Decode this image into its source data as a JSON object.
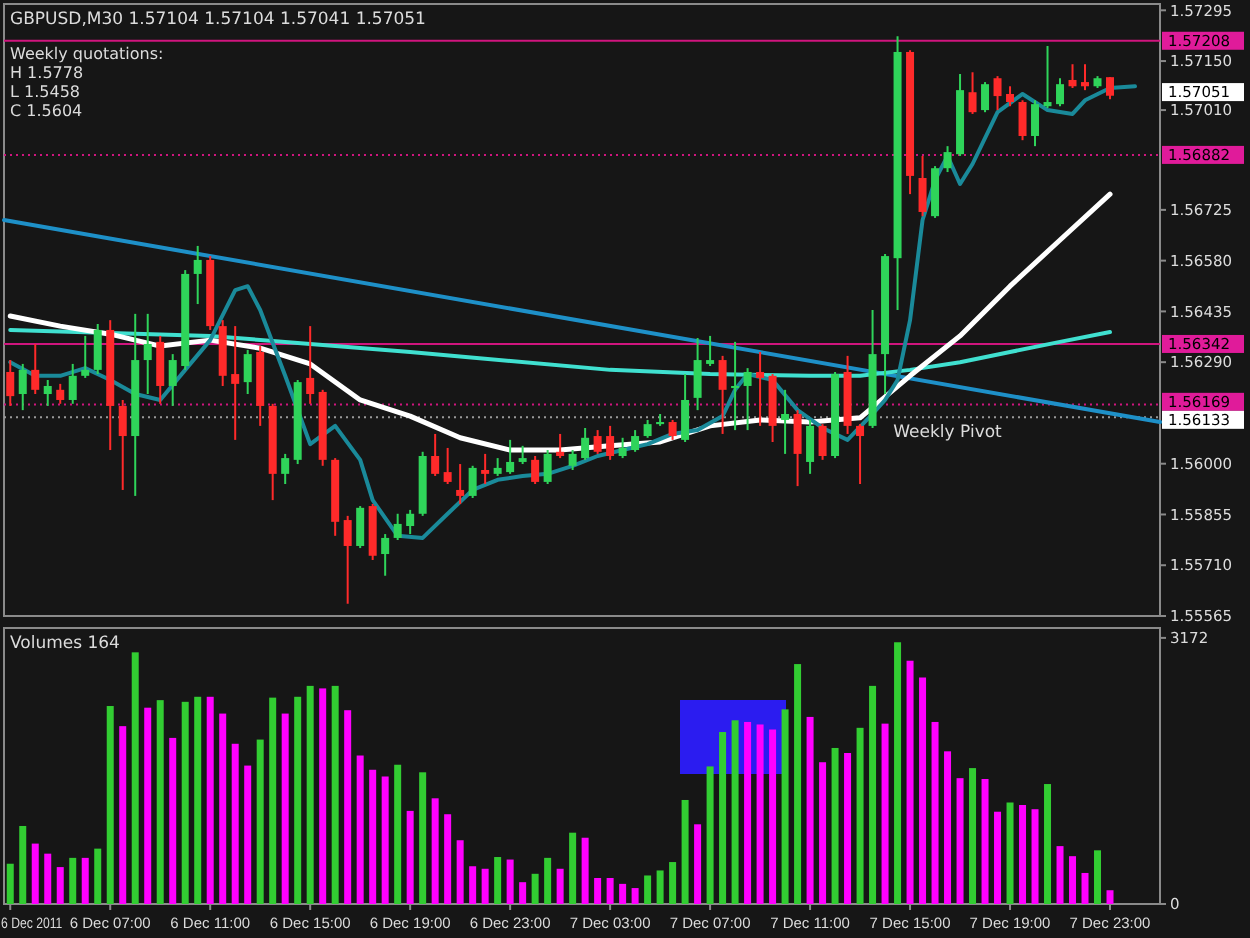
{
  "chart_data": [
    {
      "type": "candlestick",
      "title": "GBPUSD,M30  1.57104 1.57104 1.57041 1.57051",
      "tick_labels": "y",
      "annotations": [
        "Weekly quotations:",
        "H 1.5778",
        "L 1.5458",
        "C 1.5604",
        {
          "text": "Weekly Pivot",
          "x": "2011-12-07T16:30",
          "y": 1.56133
        },
        "1.57051"
      ],
      "xlim": [
        "2011-12-06T02:45",
        "2011-12-08T01:00"
      ],
      "ylim": [
        1.55565,
        1.57313
      ],
      "yticks": [
        1.57295,
        {
          "value": 1.5715,
          "label": "1.57150"
        },
        {
          "value": 1.5701,
          "label": "1.57010"
        },
        1.56725,
        {
          "value": 1.5658,
          "label": "1.56580"
        },
        1.56435,
        {
          "value": 1.5629,
          "label": "1.56290"
        },
        {
          "value": 1.56,
          "label": "1.56000"
        },
        1.55855,
        {
          "value": 1.5571,
          "label": "1.55710"
        },
        1.55565
      ],
      "x": [
        "2011-12-06T03:00",
        "2011-12-06T03:30",
        "2011-12-06T04:00",
        "2011-12-06T04:30",
        "2011-12-06T05:00",
        "2011-12-06T05:30",
        "2011-12-06T06:00",
        "2011-12-06T06:30",
        "2011-12-06T07:00",
        "2011-12-06T07:30",
        "2011-12-06T08:00",
        "2011-12-06T08:30",
        "2011-12-06T09:00",
        "2011-12-06T09:30",
        "2011-12-06T10:00",
        "2011-12-06T10:30",
        "2011-12-06T11:00",
        "2011-12-06T11:30",
        "2011-12-06T12:00",
        "2011-12-06T12:30",
        "2011-12-06T13:00",
        "2011-12-06T13:30",
        "2011-12-06T14:00",
        "2011-12-06T14:30",
        "2011-12-06T15:00",
        "2011-12-06T15:30",
        "2011-12-06T16:00",
        "2011-12-06T16:30",
        "2011-12-06T17:00",
        "2011-12-06T17:30",
        "2011-12-06T18:00",
        "2011-12-06T18:30",
        "2011-12-06T19:00",
        "2011-12-06T19:30",
        "2011-12-06T20:00",
        "2011-12-06T20:30",
        "2011-12-06T21:00",
        "2011-12-06T21:30",
        "2011-12-06T22:00",
        "2011-12-06T22:30",
        "2011-12-06T23:00",
        "2011-12-06T23:30",
        "2011-12-07T00:00",
        "2011-12-07T00:30",
        "2011-12-07T01:00",
        "2011-12-07T01:30",
        "2011-12-07T02:00",
        "2011-12-07T02:30",
        "2011-12-07T03:00",
        "2011-12-07T03:30",
        "2011-12-07T04:00",
        "2011-12-07T04:30",
        "2011-12-07T05:00",
        "2011-12-07T05:30",
        "2011-12-07T06:00",
        "2011-12-07T06:30",
        "2011-12-07T07:00",
        "2011-12-07T07:30",
        "2011-12-07T08:00",
        "2011-12-07T08:30",
        "2011-12-07T09:00",
        "2011-12-07T09:30",
        "2011-12-07T10:00",
        "2011-12-07T10:30",
        "2011-12-07T11:00",
        "2011-12-07T11:30",
        "2011-12-07T12:00",
        "2011-12-07T12:30",
        "2011-12-07T13:00",
        "2011-12-07T13:30",
        "2011-12-07T14:00",
        "2011-12-07T14:30",
        "2011-12-07T15:00",
        "2011-12-07T15:30",
        "2011-12-07T16:00",
        "2011-12-07T16:30",
        "2011-12-07T17:00",
        "2011-12-07T17:30",
        "2011-12-07T18:00",
        "2011-12-07T18:30",
        "2011-12-07T19:00",
        "2011-12-07T19:30",
        "2011-12-07T20:00",
        "2011-12-07T20:30",
        "2011-12-07T21:00",
        "2011-12-07T21:30",
        "2011-12-07T22:00",
        "2011-12-07T22:30",
        "2011-12-07T23:00"
      ],
      "ohlc": [
        [
          1.56262,
          1.56296,
          1.56165,
          1.56193
        ],
        [
          1.56199,
          1.56285,
          1.56153,
          1.56268
        ],
        [
          1.56268,
          1.56342,
          1.56199,
          1.56211
        ],
        [
          1.56199,
          1.56239,
          1.56165,
          1.56222
        ],
        [
          1.56211,
          1.56228,
          1.56171,
          1.56182
        ],
        [
          1.56182,
          1.56285,
          1.56171,
          1.56251
        ],
        [
          1.56251,
          1.56365,
          1.56245,
          1.56268
        ],
        [
          1.56268,
          1.56399,
          1.56256,
          1.56382
        ],
        [
          1.56382,
          1.5641,
          1.56039,
          1.56165
        ],
        [
          1.56165,
          1.56182,
          1.55925,
          1.56079
        ],
        [
          1.56079,
          1.56428,
          1.55908,
          1.56296
        ],
        [
          1.56296,
          1.56428,
          1.56199,
          1.56342
        ],
        [
          1.56348,
          1.56365,
          1.56171,
          1.56222
        ],
        [
          1.56222,
          1.56313,
          1.56165,
          1.56296
        ],
        [
          1.56279,
          1.56553,
          1.56268,
          1.56542
        ],
        [
          1.56542,
          1.56622,
          1.56456,
          1.56582
        ],
        [
          1.56582,
          1.56593,
          1.56382,
          1.56393
        ],
        [
          1.56393,
          1.5641,
          1.56222,
          1.56251
        ],
        [
          1.56256,
          1.56393,
          1.56068,
          1.56228
        ],
        [
          1.56233,
          1.56325,
          1.56199,
          1.56313
        ],
        [
          1.56319,
          1.56336,
          1.56108,
          1.56165
        ],
        [
          1.56165,
          1.56171,
          1.55896,
          1.55971
        ],
        [
          1.55971,
          1.56028,
          1.55942,
          1.56016
        ],
        [
          1.56011,
          1.56239,
          1.55999,
          1.56233
        ],
        [
          1.56245,
          1.56393,
          1.56171,
          1.56199
        ],
        [
          1.56205,
          1.56211,
          1.55994,
          1.56011
        ],
        [
          1.56011,
          1.56016,
          1.55794,
          1.55834
        ],
        [
          1.55839,
          1.55851,
          1.556,
          1.55765
        ],
        [
          1.55765,
          1.55879,
          1.55759,
          1.55874
        ],
        [
          1.55879,
          1.55885,
          1.55725,
          1.55737
        ],
        [
          1.55742,
          1.55799,
          1.5568,
          1.55788
        ],
        [
          1.55788,
          1.55857,
          1.55782,
          1.55828
        ],
        [
          1.55822,
          1.55868,
          1.55799,
          1.55857
        ],
        [
          1.55857,
          1.56034,
          1.55851,
          1.56022
        ],
        [
          1.56022,
          1.56085,
          1.55965,
          1.55971
        ],
        [
          1.55976,
          1.56045,
          1.55942,
          1.55948
        ],
        [
          1.55925,
          1.55999,
          1.55885,
          1.55908
        ],
        [
          1.55908,
          1.55994,
          1.55902,
          1.55988
        ],
        [
          1.55982,
          1.56028,
          1.55942,
          1.55971
        ],
        [
          1.55971,
          1.56016,
          1.55965,
          1.55988
        ],
        [
          1.55976,
          1.56068,
          1.55971,
          1.56005
        ],
        [
          1.56005,
          1.56051,
          1.55999,
          1.56016
        ],
        [
          1.56011,
          1.56022,
          1.55942,
          1.55948
        ],
        [
          1.55948,
          1.56039,
          1.55942,
          1.56028
        ],
        [
          1.56034,
          1.56085,
          1.56016,
          1.56022
        ],
        [
          1.55994,
          1.56039,
          1.55982,
          1.56028
        ],
        [
          1.56016,
          1.56102,
          1.56011,
          1.56074
        ],
        [
          1.56079,
          1.56096,
          1.56028,
          1.56034
        ],
        [
          1.56079,
          1.56108,
          1.56011,
          1.56022
        ],
        [
          1.56022,
          1.56074,
          1.56016,
          1.56045
        ],
        [
          1.56039,
          1.56096,
          1.56034,
          1.56079
        ],
        [
          1.56079,
          1.56125,
          1.56074,
          1.56113
        ],
        [
          1.56113,
          1.56142,
          1.56108,
          1.56119
        ],
        [
          1.56119,
          1.56125,
          1.56068,
          1.56079
        ],
        [
          1.56068,
          1.56256,
          1.56062,
          1.56182
        ],
        [
          1.56188,
          1.56359,
          1.56153,
          1.56296
        ],
        [
          1.56285,
          1.56365,
          1.56279,
          1.56296
        ],
        [
          1.56296,
          1.56308,
          1.56085,
          1.56211
        ],
        [
          1.56216,
          1.56348,
          1.56096,
          1.56222
        ],
        [
          1.56222,
          1.56273,
          1.56096,
          1.56262
        ],
        [
          1.56262,
          1.56319,
          1.56108,
          1.56245
        ],
        [
          1.56251,
          1.56256,
          1.56062,
          1.56108
        ],
        [
          1.56125,
          1.56211,
          1.56028,
          1.56142
        ],
        [
          1.56142,
          1.56153,
          1.55936,
          1.56028
        ],
        [
          1.56005,
          1.56125,
          1.55971,
          1.56108
        ],
        [
          1.56108,
          1.56113,
          1.56011,
          1.56022
        ],
        [
          1.56022,
          1.56262,
          1.56016,
          1.56256
        ],
        [
          1.56262,
          1.56308,
          1.56085,
          1.56108
        ],
        [
          1.56108,
          1.56113,
          1.55942,
          1.56079
        ],
        [
          1.56108,
          1.56439,
          1.56102,
          1.56313
        ],
        [
          1.56313,
          1.56599,
          1.56199,
          1.56593
        ],
        [
          1.56587,
          1.57221,
          1.56439,
          1.57176
        ],
        [
          1.57176,
          1.57181,
          1.5677,
          1.56822
        ],
        [
          1.56816,
          1.56879,
          1.56707,
          1.56719
        ],
        [
          1.56707,
          1.5685,
          1.56702,
          1.56844
        ],
        [
          1.56844,
          1.56907,
          1.56833,
          1.5689
        ],
        [
          1.56884,
          1.57113,
          1.56879,
          1.57067
        ],
        [
          1.57061,
          1.57118,
          1.56999,
          1.57004
        ],
        [
          1.5701,
          1.5709,
          1.57004,
          1.57084
        ],
        [
          1.57101,
          1.57107,
          1.5701,
          1.5705
        ],
        [
          1.57056,
          1.57078,
          1.57021,
          1.57033
        ],
        [
          1.57033,
          1.57038,
          1.56924,
          1.56936
        ],
        [
          1.56936,
          1.57038,
          1.56907,
          1.57027
        ],
        [
          1.57021,
          1.57193,
          1.57016,
          1.57033
        ],
        [
          1.57027,
          1.57101,
          1.57021,
          1.57084
        ],
        [
          1.57096,
          1.57141,
          1.57073,
          1.57078
        ],
        [
          1.5709,
          1.57141,
          1.57067,
          1.57078
        ],
        [
          1.57078,
          1.57107,
          1.57073,
          1.57101
        ],
        [
          1.57104,
          1.57104,
          1.57041,
          1.57051
        ]
      ],
      "colors": [
        "#ff2a2a",
        "#2fd45a",
        "#ff2a2a",
        "#2fd45a",
        "#ff2a2a",
        "#2fd45a",
        "#2fd45a",
        "#2fd45a",
        "#ff2a2a",
        "#ff2a2a",
        "#2fd45a",
        "#2fd45a",
        "#ff2a2a",
        "#2fd45a",
        "#2fd45a",
        "#2fd45a",
        "#ff2a2a",
        "#ff2a2a",
        "#ff2a2a",
        "#2fd45a",
        "#ff2a2a",
        "#ff2a2a",
        "#2fd45a",
        "#2fd45a",
        "#ff2a2a",
        "#ff2a2a",
        "#ff2a2a",
        "#ff2a2a",
        "#2fd45a",
        "#ff2a2a",
        "#2fd45a",
        "#2fd45a",
        "#2fd45a",
        "#2fd45a",
        "#ff2a2a",
        "#ff2a2a",
        "#ff2a2a",
        "#2fd45a",
        "#ff2a2a",
        "#2fd45a",
        "#2fd45a",
        "#2fd45a",
        "#ff2a2a",
        "#2fd45a",
        "#ff2a2a",
        "#2fd45a",
        "#2fd45a",
        "#ff2a2a",
        "#ff2a2a",
        "#2fd45a",
        "#2fd45a",
        "#2fd45a",
        "#2fd45a",
        "#ff2a2a",
        "#2fd45a",
        "#2fd45a",
        "#2fd45a",
        "#ff2a2a",
        "#2fd45a",
        "#2fd45a",
        "#ff2a2a",
        "#ff2a2a",
        "#2fd45a",
        "#ff2a2a",
        "#2fd45a",
        "#ff2a2a",
        "#2fd45a",
        "#ff2a2a",
        "#ff2a2a",
        "#2fd45a",
        "#2fd45a",
        "#2fd45a",
        "#ff2a2a",
        "#ff2a2a",
        "#2fd45a",
        "#2fd45a",
        "#2fd45a",
        "#ff2a2a",
        "#2fd45a",
        "#ff2a2a",
        "#ff2a2a",
        "#ff2a2a",
        "#2fd45a",
        "#2fd45a",
        "#2fd45a",
        "#ff2a2a",
        "#ff2a2a",
        "#2fd45a",
        "#ff2a2a"
      ],
      "series": [
        {
          "type": "line",
          "color": "#1e90c8",
          "x": [
            "2011-12-06T02:45",
            "2011-12-08T01:00"
          ],
          "values": [
            1.56696,
            1.56119
          ]
        },
        {
          "type": "line",
          "color": "#40e0d0",
          "x": [
            "2011-12-06T03:00",
            "2011-12-06T11:00",
            "2011-12-06T19:00",
            "2011-12-07T03:00",
            "2011-12-07T07:00",
            "2011-12-07T11:00",
            "2011-12-07T13:00",
            "2011-12-07T15:00",
            "2011-12-07T17:00",
            "2011-12-07T19:00",
            "2011-12-07T21:00",
            "2011-12-07T23:00"
          ],
          "values": [
            1.56382,
            1.56365,
            1.56319,
            1.56268,
            1.56256,
            1.56251,
            1.56251,
            1.56268,
            1.5629,
            1.56319,
            1.56348,
            1.56376
          ]
        },
        {
          "type": "line",
          "color": "#ffffff",
          "x": [
            "2011-12-06T03:00",
            "2011-12-06T05:00",
            "2011-12-06T07:00",
            "2011-12-06T09:00",
            "2011-12-06T11:00",
            "2011-12-06T13:00",
            "2011-12-06T15:00",
            "2011-12-06T17:00",
            "2011-12-06T19:00",
            "2011-12-06T21:00",
            "2011-12-06T23:00",
            "2011-12-07T01:00",
            "2011-12-07T03:00",
            "2011-12-07T05:00",
            "2011-12-07T07:00",
            "2011-12-07T09:00",
            "2011-12-07T11:00",
            "2011-12-07T13:00",
            "2011-12-07T15:00",
            "2011-12-07T17:00",
            "2011-12-07T19:00",
            "2011-12-07T21:00",
            "2011-12-07T23:00"
          ],
          "values": [
            1.56422,
            1.56393,
            1.5637,
            1.56336,
            1.56353,
            1.5633,
            1.56285,
            1.56182,
            1.56136,
            1.56074,
            1.56039,
            1.56039,
            1.56051,
            1.56062,
            1.56108,
            1.56125,
            1.56119,
            1.56131,
            1.56251,
            1.56365,
            1.56507,
            1.56639,
            1.5677
          ]
        },
        {
          "type": "line",
          "color": "#1a8a9a",
          "x": [
            "2011-12-06T03:00",
            "2011-12-06T04:00",
            "2011-12-06T05:00",
            "2011-12-06T06:00",
            "2011-12-06T07:00",
            "2011-12-06T08:00",
            "2011-12-06T09:00",
            "2011-12-06T10:00",
            "2011-12-06T11:00",
            "2011-12-06T12:00",
            "2011-12-06T12:30",
            "2011-12-06T13:00",
            "2011-12-06T14:00",
            "2011-12-06T15:00",
            "2011-12-06T16:00",
            "2011-12-06T17:00",
            "2011-12-06T17:30",
            "2011-12-06T18:30",
            "2011-12-06T19:30",
            "2011-12-06T20:30",
            "2011-12-06T21:30",
            "2011-12-06T22:30",
            "2011-12-06T23:30",
            "2011-12-07T00:30",
            "2011-12-07T01:30",
            "2011-12-07T02:30",
            "2011-12-07T03:30",
            "2011-12-07T04:30",
            "2011-12-07T05:30",
            "2011-12-07T06:30",
            "2011-12-07T07:30",
            "2011-12-07T08:00",
            "2011-12-07T08:30",
            "2011-12-07T09:30",
            "2011-12-07T10:30",
            "2011-12-07T11:30",
            "2011-12-07T12:30",
            "2011-12-07T13:30",
            "2011-12-07T14:00",
            "2011-12-07T14:30",
            "2011-12-07T15:00",
            "2011-12-07T15:30",
            "2011-12-07T16:00",
            "2011-12-07T16:30",
            "2011-12-07T17:00",
            "2011-12-07T17:30",
            "2011-12-07T18:30",
            "2011-12-07T19:30",
            "2011-12-07T20:30",
            "2011-12-07T21:30",
            "2011-12-07T22:00",
            "2011-12-07T23:00",
            "2011-12-08T00:00"
          ],
          "values": [
            1.5629,
            1.56251,
            1.56251,
            1.56273,
            1.56239,
            1.56199,
            1.56182,
            1.56268,
            1.56353,
            1.56496,
            1.56507,
            1.56439,
            1.56251,
            1.56056,
            1.56108,
            1.56011,
            1.55896,
            1.55794,
            1.55788,
            1.55857,
            1.55925,
            1.55954,
            1.55965,
            1.55971,
            1.55994,
            1.56022,
            1.56039,
            1.56056,
            1.56085,
            1.56096,
            1.56136,
            1.56211,
            1.56256,
            1.56239,
            1.56153,
            1.56102,
            1.56068,
            1.56142,
            1.56182,
            1.56239,
            1.5641,
            1.56696,
            1.5681,
            1.56879,
            1.56799,
            1.56856,
            1.57004,
            1.57056,
            1.5701,
            1.56999,
            1.57038,
            1.57073,
            1.57078
          ]
        }
      ],
      "ref_lines": [
        {
          "axis": "y",
          "value": 1.57208,
          "label": "1.57208",
          "color": "#d0157e",
          "line_style": "solid"
        },
        {
          "axis": "y",
          "value": 1.56882,
          "label": "1.56882",
          "color": "#d0157e",
          "line_style": "dotted"
        },
        {
          "axis": "y",
          "value": 1.56342,
          "label": "1.56342",
          "color": "#d0157e",
          "line_style": "solid"
        },
        {
          "axis": "y",
          "value": 1.56169,
          "label": "1.56169",
          "color": "#d0157e",
          "line_style": "dotted"
        },
        {
          "axis": "y",
          "value": 1.56133,
          "label": "1.56133",
          "color": "#9a9a9a",
          "line_style": "dotted"
        }
      ]
    },
    {
      "type": "bar",
      "title": "Volumes 164",
      "xlim": [
        "2011-12-06T02:45",
        "2011-12-08T01:00"
      ],
      "ylim": [
        0,
        3290
      ],
      "yticks": [
        0,
        3172
      ],
      "xticks": [
        {
          "value": "2011-12-06T03:00",
          "label": "6 Dec 2011"
        },
        {
          "value": "2011-12-06T07:00",
          "label": "6 Dec 07:00"
        },
        {
          "value": "2011-12-06T11:00",
          "label": "6 Dec 11:00"
        },
        {
          "value": "2011-12-06T15:00",
          "label": "6 Dec 15:00"
        },
        {
          "value": "2011-12-06T19:00",
          "label": "6 Dec 19:00"
        },
        {
          "value": "2011-12-06T23:00",
          "label": "6 Dec 23:00"
        },
        {
          "value": "2011-12-07T03:00",
          "label": "7 Dec 03:00"
        },
        {
          "value": "2011-12-07T07:00",
          "label": "7 Dec 07:00"
        },
        {
          "value": "2011-12-07T11:00",
          "label": "7 Dec 11:00"
        },
        {
          "value": "2011-12-07T15:00",
          "label": "7 Dec 15:00"
        },
        {
          "value": "2011-12-07T19:00",
          "label": "7 Dec 19:00"
        },
        {
          "value": "2011-12-07T23:00",
          "label": "7 Dec 23:00"
        }
      ],
      "x": [
        "2011-12-06T03:00",
        "2011-12-06T03:30",
        "2011-12-06T04:00",
        "2011-12-06T04:30",
        "2011-12-06T05:00",
        "2011-12-06T05:30",
        "2011-12-06T06:00",
        "2011-12-06T06:30",
        "2011-12-06T07:00",
        "2011-12-06T07:30",
        "2011-12-06T08:00",
        "2011-12-06T08:30",
        "2011-12-06T09:00",
        "2011-12-06T09:30",
        "2011-12-06T10:00",
        "2011-12-06T10:30",
        "2011-12-06T11:00",
        "2011-12-06T11:30",
        "2011-12-06T12:00",
        "2011-12-06T12:30",
        "2011-12-06T13:00",
        "2011-12-06T13:30",
        "2011-12-06T14:00",
        "2011-12-06T14:30",
        "2011-12-06T15:00",
        "2011-12-06T15:30",
        "2011-12-06T16:00",
        "2011-12-06T16:30",
        "2011-12-06T17:00",
        "2011-12-06T17:30",
        "2011-12-06T18:00",
        "2011-12-06T18:30",
        "2011-12-06T19:00",
        "2011-12-06T19:30",
        "2011-12-06T20:00",
        "2011-12-06T20:30",
        "2011-12-06T21:00",
        "2011-12-06T21:30",
        "2011-12-06T22:00",
        "2011-12-06T22:30",
        "2011-12-06T23:00",
        "2011-12-06T23:30",
        "2011-12-07T00:00",
        "2011-12-07T00:30",
        "2011-12-07T01:00",
        "2011-12-07T01:30",
        "2011-12-07T02:00",
        "2011-12-07T02:30",
        "2011-12-07T03:00",
        "2011-12-07T03:30",
        "2011-12-07T04:00",
        "2011-12-07T04:30",
        "2011-12-07T05:00",
        "2011-12-07T05:30",
        "2011-12-07T06:00",
        "2011-12-07T06:30",
        "2011-12-07T07:00",
        "2011-12-07T07:30",
        "2011-12-07T08:00",
        "2011-12-07T08:30",
        "2011-12-07T09:00",
        "2011-12-07T09:30",
        "2011-12-07T10:00",
        "2011-12-07T10:30",
        "2011-12-07T11:00",
        "2011-12-07T11:30",
        "2011-12-07T12:00",
        "2011-12-07T12:30",
        "2011-12-07T13:00",
        "2011-12-07T13:30",
        "2011-12-07T14:00",
        "2011-12-07T14:30",
        "2011-12-07T15:00",
        "2011-12-07T15:30",
        "2011-12-07T16:00",
        "2011-12-07T16:30",
        "2011-12-07T17:00",
        "2011-12-07T17:30",
        "2011-12-07T18:00",
        "2011-12-07T18:30",
        "2011-12-07T19:00",
        "2011-12-07T19:30",
        "2011-12-07T20:00",
        "2011-12-07T20:30",
        "2011-12-07T21:00",
        "2011-12-07T21:30",
        "2011-12-07T22:00",
        "2011-12-07T22:30",
        "2011-12-07T23:00"
      ],
      "values": [
        480,
        930,
        720,
        600,
        440,
        550,
        550,
        660,
        2360,
        2120,
        3000,
        2340,
        2430,
        1980,
        2410,
        2470,
        2470,
        2270,
        1910,
        1650,
        1960,
        2460,
        2270,
        2470,
        2600,
        2570,
        2600,
        2310,
        1770,
        1600,
        1520,
        1660,
        1110,
        1570,
        1260,
        1070,
        760,
        450,
        420,
        560,
        530,
        260,
        360,
        550,
        420,
        850,
        790,
        310,
        310,
        240,
        190,
        340,
        400,
        500,
        1240,
        950,
        1640,
        2050,
        2190,
        2170,
        2140,
        2080,
        2320,
        2860,
        2230,
        1690,
        1860,
        1800,
        2100,
        2600,
        2150,
        3120,
        2900,
        2700,
        2170,
        1820,
        1500,
        1620,
        1490,
        1100,
        1210,
        1180,
        1130,
        1430,
        690,
        570,
        370,
        640,
        164
      ],
      "colors": [
        "#32cd32",
        "#32cd32",
        "#ff00ff",
        "#ff00ff",
        "#ff00ff",
        "#32cd32",
        "#ff00ff",
        "#32cd32",
        "#32cd32",
        "#ff00ff",
        "#32cd32",
        "#ff00ff",
        "#32cd32",
        "#ff00ff",
        "#32cd32",
        "#32cd32",
        "#ff00ff",
        "#ff00ff",
        "#ff00ff",
        "#ff00ff",
        "#32cd32",
        "#32cd32",
        "#ff00ff",
        "#32cd32",
        "#32cd32",
        "#ff00ff",
        "#32cd32",
        "#ff00ff",
        "#ff00ff",
        "#ff00ff",
        "#ff00ff",
        "#32cd32",
        "#ff00ff",
        "#32cd32",
        "#ff00ff",
        "#ff00ff",
        "#ff00ff",
        "#ff00ff",
        "#ff00ff",
        "#32cd32",
        "#ff00ff",
        "#ff00ff",
        "#32cd32",
        "#32cd32",
        "#ff00ff",
        "#32cd32",
        "#ff00ff",
        "#ff00ff",
        "#ff00ff",
        "#ff00ff",
        "#ff00ff",
        "#32cd32",
        "#32cd32",
        "#32cd32",
        "#32cd32",
        "#ff00ff",
        "#32cd32",
        "#32cd32",
        "#32cd32",
        "#ff00ff",
        "#ff00ff",
        "#ff00ff",
        "#32cd32",
        "#32cd32",
        "#ff00ff",
        "#ff00ff",
        "#32cd32",
        "#ff00ff",
        "#32cd32",
        "#32cd32",
        "#ff00ff",
        "#32cd32",
        "#ff00ff",
        "#ff00ff",
        "#ff00ff",
        "#ff00ff",
        "#ff00ff",
        "#32cd32",
        "#ff00ff",
        "#ff00ff",
        "#32cd32",
        "#ff00ff",
        "#ff00ff",
        "#32cd32",
        "#ff00ff",
        "#ff00ff",
        "#ff00ff",
        "#32cd32",
        "#ff00ff"
      ]
    }
  ]
}
